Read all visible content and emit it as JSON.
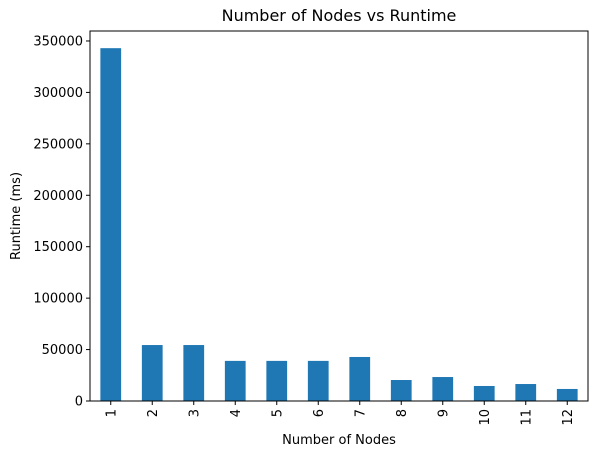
{
  "chart_data": {
    "type": "bar",
    "title": "Number of Nodes vs Runtime",
    "x_label": "Number of Nodes",
    "y_label": "Runtime (ms)",
    "categories": [
      "1",
      "2",
      "3",
      "4",
      "5",
      "6",
      "7",
      "8",
      "9",
      "10",
      "11",
      "12"
    ],
    "values": [
      343000,
      54400,
      54400,
      39000,
      39000,
      39000,
      42800,
      20400,
      23300,
      14600,
      16500,
      11700
    ],
    "color": "#1f77b4",
    "ylim": [
      0,
      359700
    ],
    "yticks": [
      0,
      50000,
      100000,
      150000,
      200000,
      250000,
      300000,
      350000
    ],
    "grid": false
  }
}
